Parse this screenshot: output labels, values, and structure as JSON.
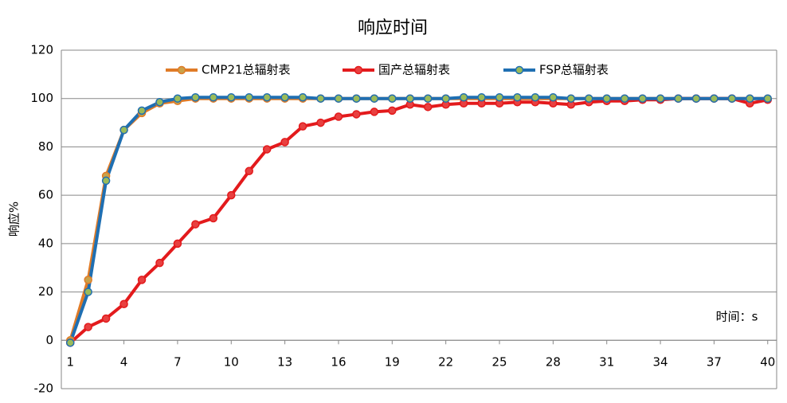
{
  "chart_data": {
    "type": "line",
    "title": "响应时间",
    "y_label": "响应%",
    "annotation": "时间：s",
    "x": [
      1,
      2,
      3,
      4,
      5,
      6,
      7,
      8,
      9,
      10,
      11,
      12,
      13,
      14,
      15,
      16,
      17,
      18,
      19,
      20,
      21,
      22,
      23,
      24,
      25,
      26,
      27,
      28,
      29,
      30,
      31,
      32,
      33,
      34,
      35,
      36,
      37,
      38,
      39,
      40
    ],
    "xlim": [
      0.5,
      40.5
    ],
    "xticks": [
      1,
      4,
      7,
      10,
      13,
      16,
      19,
      22,
      25,
      28,
      31,
      34,
      37,
      40
    ],
    "ylim": [
      -20,
      120
    ],
    "yticks": [
      -20,
      0,
      20,
      40,
      60,
      80,
      100,
      120
    ],
    "grid": true,
    "legend": "top",
    "series": [
      {
        "name": "CMP21总辐射表",
        "color": "#e07b27",
        "marker_color": "#c9a24a",
        "values": [
          0,
          25,
          68,
          87,
          94,
          98,
          99,
          100,
          100,
          100,
          100,
          100,
          100,
          100,
          100,
          100,
          100,
          100,
          100,
          100,
          100,
          100,
          100,
          100,
          100,
          100,
          100,
          100,
          100,
          100,
          100,
          100,
          100,
          100,
          100,
          100,
          100,
          100,
          100,
          100
        ]
      },
      {
        "name": "国产总辐射表",
        "color": "#e31a1c",
        "marker_color": "#e84040",
        "values": [
          -1,
          5.5,
          9,
          15,
          25,
          32,
          40,
          48,
          50.5,
          60,
          70,
          79,
          82,
          88.5,
          90,
          92.5,
          93.5,
          94.5,
          95,
          97.5,
          96.5,
          97.5,
          98,
          98,
          98,
          98.5,
          98.5,
          98,
          97.5,
          98.5,
          99,
          99,
          99.5,
          99.5,
          100,
          100,
          100,
          100,
          98,
          99.5
        ]
      },
      {
        "name": "FSP总辐射表",
        "color": "#1f6fb2",
        "marker_color": "#9bbb59",
        "values": [
          -1,
          20,
          66,
          87,
          95,
          98.5,
          100,
          100.5,
          100.5,
          100.5,
          100.5,
          100.5,
          100.5,
          100.5,
          100,
          100,
          100,
          100,
          100,
          100,
          100,
          100,
          100.5,
          100.5,
          100.5,
          100.5,
          100.5,
          100.5,
          100,
          100,
          100,
          100,
          100,
          100,
          100,
          100,
          100,
          100,
          100,
          100
        ]
      }
    ]
  }
}
